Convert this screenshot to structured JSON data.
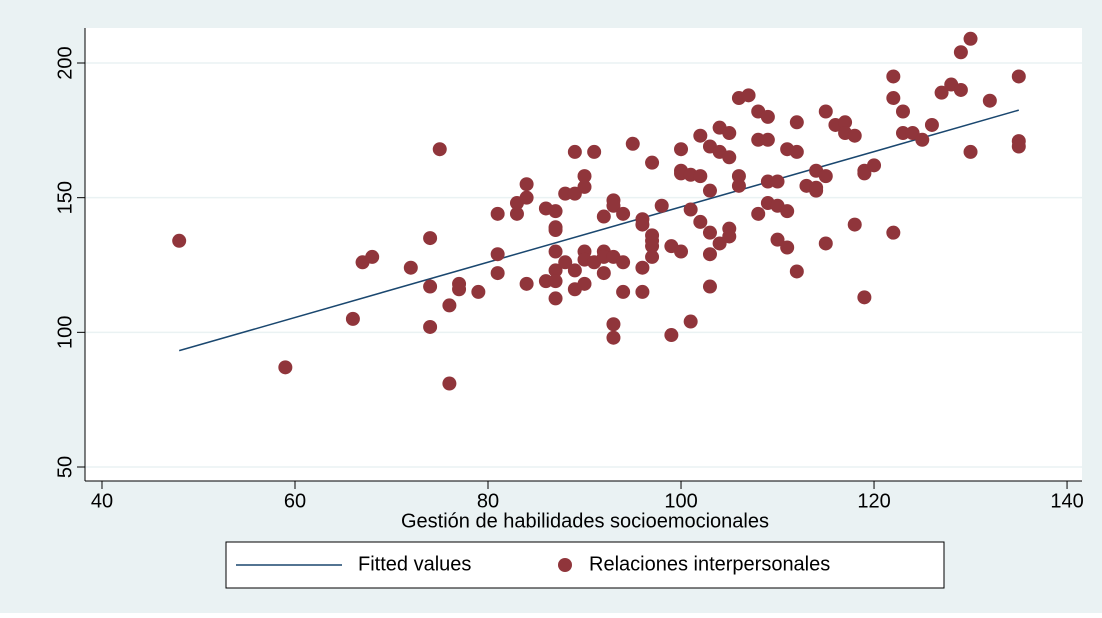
{
  "chart_data": {
    "type": "scatter",
    "xlabel": "Gestión de habilidades socioemocionales",
    "xlim": [
      38.24,
      141.55
    ],
    "xticks": [
      40,
      60,
      80,
      100,
      120,
      140
    ],
    "ylim": [
      44.8,
      213
    ],
    "yticks": [
      50,
      100,
      150,
      200
    ],
    "grid": true,
    "legend": "bottom",
    "series": [
      {
        "name": "Fitted values",
        "type": "line",
        "color": "#1a476f",
        "x": [
          48,
          135
        ],
        "values": [
          93.2,
          182.5
        ]
      },
      {
        "name": "Relaciones interpersonales",
        "type": "scatter",
        "color": "#90353b",
        "x": [
          48,
          59,
          66,
          67,
          68,
          72,
          74,
          74,
          74,
          75,
          76,
          76,
          77,
          77,
          79,
          81,
          81,
          81,
          83,
          83,
          84,
          84,
          84,
          86,
          86,
          87,
          87,
          87,
          87,
          87,
          87,
          87,
          88,
          88,
          89,
          89,
          89,
          89,
          90,
          90,
          90,
          90,
          90,
          91,
          91,
          92,
          92,
          92,
          92,
          93,
          93,
          93,
          93,
          93,
          94,
          94,
          94,
          95,
          96,
          96,
          96,
          96,
          97,
          97,
          97,
          97,
          97,
          98,
          99,
          99,
          100,
          100,
          100,
          100,
          101,
          101,
          101,
          102,
          102,
          102,
          103,
          103,
          103,
          103,
          103,
          104,
          104,
          104,
          105,
          105,
          105,
          105,
          106,
          106,
          106,
          107,
          108,
          108,
          108,
          109,
          109,
          109,
          109,
          110,
          110,
          110,
          111,
          111,
          111,
          112,
          112,
          112,
          113,
          114,
          114,
          114,
          115,
          115,
          115,
          116,
          117,
          117,
          118,
          118,
          119,
          119,
          119,
          120,
          122,
          122,
          122,
          123,
          123,
          124,
          125,
          126,
          127,
          128,
          129,
          129,
          130,
          130,
          132,
          135,
          135,
          135
        ],
        "values": [
          134,
          87,
          105,
          126,
          128,
          124,
          135,
          117,
          102,
          168,
          81,
          110,
          118,
          116,
          115,
          144,
          129,
          122,
          144,
          148,
          150,
          155,
          118,
          146,
          119,
          145,
          139,
          138,
          130,
          123,
          119,
          112.6,
          151.5,
          126,
          167,
          151.5,
          123,
          116,
          158,
          154,
          130,
          127,
          118,
          126,
          167,
          143,
          130,
          128,
          122,
          149,
          147,
          128,
          103,
          98,
          144,
          126,
          115,
          170,
          142,
          140,
          124,
          115,
          163,
          136,
          134,
          132,
          128,
          147,
          132,
          99,
          160,
          159,
          168,
          130,
          158.5,
          145.6,
          104,
          173,
          158,
          141,
          152.6,
          169,
          137,
          129,
          117,
          176,
          167,
          133,
          174,
          165,
          138.5,
          135.6,
          187,
          158,
          154.4,
          188,
          182,
          171.5,
          144,
          180,
          171.5,
          156,
          148,
          156,
          147,
          134.4,
          168,
          145,
          131.5,
          178,
          167,
          122.6,
          154.4,
          160,
          153.7,
          152.6,
          182,
          158,
          133,
          177,
          178,
          174,
          173,
          140,
          160,
          159,
          113,
          162,
          195,
          187,
          137,
          182,
          174,
          174,
          171.5,
          177,
          189,
          192,
          190,
          204,
          209,
          167,
          186,
          195,
          171,
          169
        ]
      }
    ]
  }
}
